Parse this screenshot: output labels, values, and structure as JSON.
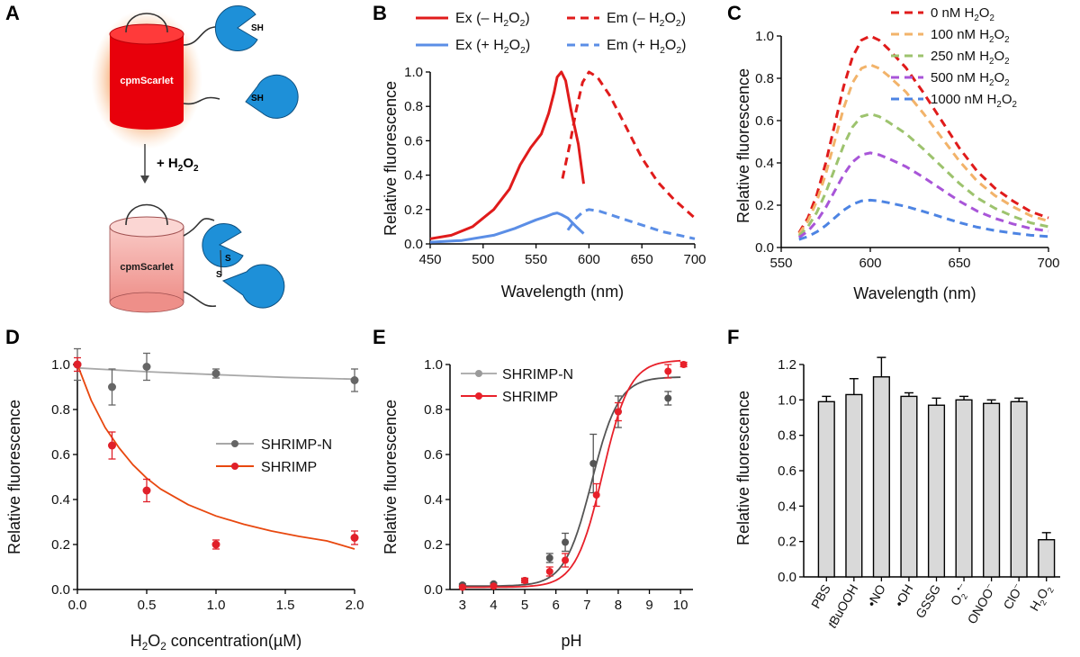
{
  "panel_letters": {
    "A": "A",
    "B": "B",
    "C": "C",
    "D": "D",
    "E": "E",
    "F": "F"
  },
  "schematic": {
    "top_label": "cpmScarlet",
    "bottom_label": "cpmScarlet",
    "thiol_label_1": "SH",
    "thiol_label_2": "SH",
    "disulfide_s1": "S",
    "disulfide_s2": "S",
    "arrow_label_prefix": "+ H",
    "arrow_label_sub1": "2",
    "arrow_label_mid": "O",
    "arrow_label_sub2": "2",
    "colors": {
      "reduced_barrel": "#e8000b",
      "oxidized_barrel": "#f0a9a6",
      "domain": "#1e90d8"
    }
  },
  "chart_data": [
    {
      "panel": "B",
      "type": "line",
      "xlabel": "Wavelength (nm)",
      "ylabel": "Relative fluorescence",
      "xlim": [
        450,
        700
      ],
      "ylim": [
        0,
        1.0
      ],
      "xticks": [
        450,
        500,
        550,
        600,
        650,
        700
      ],
      "yticks": [
        0.0,
        0.2,
        0.4,
        0.6,
        0.8,
        1.0
      ],
      "xtick_labels": [
        "450",
        "500",
        "550",
        "600",
        "650",
        "700"
      ],
      "ytick_labels": [
        "0.0",
        "0.2",
        "0.4",
        "0.6",
        "0.8",
        "1.0"
      ],
      "legend": [
        {
          "text": "Ex (– H",
          "sub": "2",
          "text2": "O",
          "sub2": "2",
          "text3": ")"
        },
        {
          "text": "Em (– H",
          "sub": "2",
          "text2": "O",
          "sub2": "2",
          "text3": ")"
        },
        {
          "text": "Ex (+ H",
          "sub": "2",
          "text2": "O",
          "sub2": "2",
          "text3": ")"
        },
        {
          "text": "Em (+ H",
          "sub": "2",
          "text2": "O",
          "sub2": "2",
          "text3": ")"
        }
      ],
      "series": [
        {
          "name": "Ex (– H2O2)",
          "color": "#e01b1b",
          "dash": false,
          "x": [
            450,
            470,
            490,
            510,
            525,
            535,
            545,
            555,
            562,
            567,
            570,
            574,
            578,
            583,
            590,
            595
          ],
          "y": [
            0.03,
            0.05,
            0.1,
            0.2,
            0.32,
            0.46,
            0.56,
            0.64,
            0.76,
            0.88,
            0.97,
            1.0,
            0.95,
            0.78,
            0.58,
            0.35
          ]
        },
        {
          "name": "Em (– H2O2)",
          "color": "#e01b1b",
          "dash": true,
          "x": [
            575,
            582,
            588,
            594,
            600,
            608,
            620,
            635,
            650,
            665,
            680,
            700
          ],
          "y": [
            0.38,
            0.58,
            0.78,
            0.94,
            1.0,
            0.97,
            0.86,
            0.68,
            0.5,
            0.36,
            0.26,
            0.15
          ]
        },
        {
          "name": "Ex (+ H2O2)",
          "color": "#5b8ee6",
          "dash": false,
          "x": [
            450,
            480,
            510,
            530,
            550,
            560,
            566,
            570,
            574,
            580,
            588,
            595
          ],
          "y": [
            0.01,
            0.02,
            0.05,
            0.09,
            0.14,
            0.16,
            0.175,
            0.18,
            0.17,
            0.15,
            0.1,
            0.06
          ]
        },
        {
          "name": "Em (+ H2O2)",
          "color": "#5b8ee6",
          "dash": true,
          "x": [
            580,
            588,
            595,
            600,
            610,
            625,
            640,
            655,
            670,
            685,
            700
          ],
          "y": [
            0.08,
            0.15,
            0.19,
            0.2,
            0.19,
            0.16,
            0.13,
            0.1,
            0.07,
            0.05,
            0.03
          ]
        }
      ]
    },
    {
      "panel": "C",
      "type": "line",
      "xlabel": "Wavelength (nm)",
      "ylabel": "Relative fluorescence",
      "xlim": [
        550,
        700
      ],
      "ylim": [
        0,
        1.0
      ],
      "xticks": [
        550,
        600,
        650,
        700
      ],
      "yticks": [
        0.0,
        0.2,
        0.4,
        0.6,
        0.8,
        1.0
      ],
      "xtick_labels": [
        "550",
        "600",
        "650",
        "700"
      ],
      "ytick_labels": [
        "0.0",
        "0.2",
        "0.4",
        "0.6",
        "0.8",
        "1.0"
      ],
      "legend": [
        {
          "text": "0 nM H",
          "sub": "2",
          "text2": "O",
          "sub2": "2"
        },
        {
          "text": "100 nM H",
          "sub": "2",
          "text2": "O",
          "sub2": "2"
        },
        {
          "text": "250 nM H",
          "sub": "2",
          "text2": "O",
          "sub2": "2"
        },
        {
          "text": "500 nM H",
          "sub": "2",
          "text2": "O",
          "sub2": "2"
        },
        {
          "text": "1000 nM H",
          "sub": "2",
          "text2": "O",
          "sub2": "2"
        }
      ],
      "series": [
        {
          "name": "0 nM H2O2",
          "color": "#e01b1b",
          "scale": 1.0
        },
        {
          "name": "100 nM H2O2",
          "color": "#f2b36a",
          "scale": 0.86
        },
        {
          "name": "250 nM H2O2",
          "color": "#9dc36e",
          "scale": 0.62
        },
        {
          "name": "500 nM H2O2",
          "color": "#a855d8",
          "scale": 0.43
        },
        {
          "name": "1000 nM H2O2",
          "color": "#4d84e3",
          "scale": 0.2
        }
      ],
      "base_x": [
        560,
        565,
        570,
        575,
        580,
        585,
        590,
        595,
        600,
        605,
        610,
        620,
        630,
        640,
        650,
        660,
        670,
        680,
        690,
        700
      ],
      "base_y": [
        0.07,
        0.14,
        0.25,
        0.4,
        0.58,
        0.76,
        0.9,
        0.98,
        1.0,
        0.98,
        0.94,
        0.85,
        0.73,
        0.6,
        0.47,
        0.36,
        0.28,
        0.22,
        0.17,
        0.14
      ]
    },
    {
      "panel": "D",
      "type": "scatter",
      "xlabel_prefix": "H",
      "xlabel_sub1": "2",
      "xlabel_mid": "O",
      "xlabel_sub2": "2",
      "xlabel_suffix": " concentration(µM)",
      "ylabel": "Relative fluorescence",
      "xlim": [
        0,
        2.0
      ],
      "ylim": [
        0,
        1.0
      ],
      "xticks": [
        0.0,
        0.5,
        1.0,
        1.5,
        2.0
      ],
      "yticks": [
        0.0,
        0.2,
        0.4,
        0.6,
        0.8,
        1.0
      ],
      "xtick_labels": [
        "0.0",
        "0.5",
        "1.0",
        "1.5",
        "2.0"
      ],
      "ytick_labels": [
        "0.0",
        "0.2",
        "0.4",
        "0.6",
        "0.8",
        "1.0"
      ],
      "legend": [
        "SHRIMP-N",
        "SHRIMP"
      ],
      "series": [
        {
          "name": "SHRIMP-N",
          "color": "#666666",
          "fit_color": "#a8a8a8",
          "x": [
            0,
            0.25,
            0.5,
            1.0,
            2.0
          ],
          "y": [
            1.0,
            0.9,
            0.99,
            0.96,
            0.93
          ],
          "err": [
            0.07,
            0.08,
            0.06,
            0.02,
            0.05
          ],
          "fit_x": [
            0,
            0.5,
            1.0,
            1.5,
            2.0
          ],
          "fit_y": [
            0.985,
            0.968,
            0.955,
            0.943,
            0.935
          ]
        },
        {
          "name": "SHRIMP",
          "color": "#e0202a",
          "fit_color": "#e8480f",
          "x": [
            0,
            0.25,
            0.5,
            1.0,
            2.0
          ],
          "y": [
            1.0,
            0.64,
            0.44,
            0.2,
            0.23
          ],
          "err": [
            0.03,
            0.06,
            0.05,
            0.02,
            0.03
          ],
          "fit_x": [
            0,
            0.1,
            0.2,
            0.3,
            0.4,
            0.5,
            0.6,
            0.8,
            1.0,
            1.2,
            1.4,
            1.6,
            1.8,
            2.0
          ],
          "fit_y": [
            1.0,
            0.84,
            0.72,
            0.63,
            0.555,
            0.495,
            0.447,
            0.377,
            0.327,
            0.29,
            0.26,
            0.236,
            0.216,
            0.18
          ]
        }
      ]
    },
    {
      "panel": "E",
      "type": "scatter",
      "xlabel": "pH",
      "ylabel": "Relative fluorescence",
      "xlim": [
        2.6,
        10.4
      ],
      "ylim": [
        0,
        1.0
      ],
      "xticks": [
        3,
        4,
        5,
        6,
        7,
        8,
        9,
        10
      ],
      "yticks": [
        0.0,
        0.2,
        0.4,
        0.6,
        0.8,
        1.0
      ],
      "xtick_labels": [
        "3",
        "4",
        "5",
        "6",
        "7",
        "8",
        "9",
        "10"
      ],
      "ytick_labels": [
        "0.0",
        "0.2",
        "0.4",
        "0.6",
        "0.8",
        "1.0"
      ],
      "legend": [
        "SHRIMP-N",
        "SHRIMP"
      ],
      "series": [
        {
          "name": "SHRIMP-N",
          "color": "#555555",
          "fit_color": "#555555",
          "x": [
            3,
            4,
            5,
            5.8,
            6.3,
            7.2,
            8.0,
            9.6
          ],
          "y": [
            0.02,
            0.025,
            0.04,
            0.14,
            0.21,
            0.56,
            0.79,
            0.85
          ],
          "err": [
            0.005,
            0.005,
            0.01,
            0.02,
            0.04,
            0.13,
            0.07,
            0.03
          ],
          "pka": 7.15,
          "top": 0.945,
          "bottom": 0.015,
          "hill": 1.0
        },
        {
          "name": "SHRIMP",
          "color": "#e8202a",
          "fit_color": "#e8202a",
          "x": [
            3,
            4,
            5,
            5.8,
            6.3,
            7.3,
            8.0,
            9.6,
            10.1
          ],
          "y": [
            0.01,
            0.015,
            0.04,
            0.08,
            0.13,
            0.42,
            0.79,
            0.97,
            1.0
          ],
          "err": [
            0.005,
            0.005,
            0.01,
            0.02,
            0.03,
            0.05,
            0.04,
            0.03,
            0.01
          ],
          "pka": 7.5,
          "top": 1.02,
          "bottom": 0.01,
          "hill": 1.0
        }
      ]
    },
    {
      "panel": "F",
      "type": "bar",
      "ylabel": "Relative fluorescence",
      "ylim": [
        0,
        1.2
      ],
      "yticks": [
        0.0,
        0.2,
        0.4,
        0.6,
        0.8,
        1.0,
        1.2
      ],
      "ytick_labels": [
        "0.0",
        "0.2",
        "0.4",
        "0.6",
        "0.8",
        "1.0",
        "1.2"
      ],
      "categories": [
        "PBS",
        "tBuOOH",
        "•NO",
        "•OH",
        "GSSG",
        "O2•–",
        "ONOO–",
        "ClO–",
        "H2O2"
      ],
      "category_labels": [
        {
          "main": "PBS"
        },
        {
          "italic": "t",
          "main": "BuOOH"
        },
        {
          "main": "•NO"
        },
        {
          "main": "•OH"
        },
        {
          "main": "GSSG"
        },
        {
          "main": "O",
          "sub": "2",
          "sup": "•–"
        },
        {
          "main": "ONOO",
          "sup": "–"
        },
        {
          "main": "ClO",
          "sup": "–"
        },
        {
          "main": "H",
          "sub": "2",
          "main2": "O",
          "sub2": "2"
        }
      ],
      "values": [
        0.99,
        1.03,
        1.13,
        1.02,
        0.97,
        1.0,
        0.98,
        0.99,
        0.21
      ],
      "errors": [
        0.03,
        0.09,
        0.11,
        0.02,
        0.04,
        0.02,
        0.02,
        0.02,
        0.04
      ],
      "bar_color": "#d9d9d9"
    }
  ]
}
